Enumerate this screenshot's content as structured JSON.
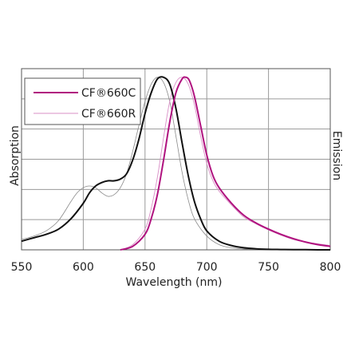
{
  "chart_data": {
    "type": "line",
    "xlabel": "Wavelength (nm)",
    "ylabel_left": "Absorption",
    "ylabel_right": "Emission",
    "xlim": [
      550,
      800
    ],
    "ylim": [
      0,
      1.05
    ],
    "xticks": [
      "550",
      "600",
      "650",
      "700",
      "750",
      "800"
    ],
    "grid": true,
    "legend_position": "top-left",
    "colors": {
      "magenta": "#b0127f",
      "black": "#111111",
      "pink_light": "#d98fc6",
      "gray": "#8a8a8a"
    },
    "legend": [
      {
        "label": "CF®660C",
        "color": "#b0127f",
        "style": "solid"
      },
      {
        "label": "CF®660R",
        "color": "#d98fc6",
        "style": "thin"
      }
    ],
    "series": [
      {
        "kind": "660C absorption",
        "color": "#111111",
        "width": 2.0,
        "x": [
          550,
          560,
          570,
          580,
          590,
          600,
          605,
          610,
          615,
          620,
          625,
          630,
          635,
          640,
          645,
          650,
          655,
          660,
          665,
          670,
          675,
          680,
          685,
          690,
          695,
          700,
          710,
          720,
          730,
          740,
          750,
          760,
          770,
          780,
          790,
          800
        ],
        "y": [
          0.05,
          0.07,
          0.09,
          0.12,
          0.18,
          0.27,
          0.33,
          0.37,
          0.39,
          0.4,
          0.4,
          0.41,
          0.44,
          0.52,
          0.64,
          0.79,
          0.91,
          0.99,
          1.0,
          0.96,
          0.82,
          0.62,
          0.43,
          0.28,
          0.18,
          0.11,
          0.05,
          0.025,
          0.012,
          0.006,
          0.003,
          0.002,
          0.001,
          0.001,
          0.0,
          0.0
        ]
      },
      {
        "kind": "660R absorption",
        "color": "#8a8a8a",
        "width": 0.8,
        "x": [
          550,
          560,
          570,
          580,
          590,
          595,
          600,
          605,
          610,
          615,
          620,
          625,
          630,
          635,
          640,
          645,
          650,
          655,
          660,
          665,
          670,
          675,
          680,
          685,
          690,
          700,
          710,
          720,
          730,
          750,
          800
        ],
        "y": [
          0.06,
          0.08,
          0.11,
          0.17,
          0.28,
          0.33,
          0.36,
          0.37,
          0.36,
          0.33,
          0.31,
          0.32,
          0.36,
          0.44,
          0.57,
          0.72,
          0.86,
          0.96,
          1.0,
          0.97,
          0.86,
          0.66,
          0.45,
          0.29,
          0.18,
          0.08,
          0.03,
          0.012,
          0.005,
          0.001,
          0.0
        ]
      },
      {
        "kind": "660C emission",
        "color": "#b0127f",
        "width": 2.0,
        "x": [
          630,
          640,
          650,
          655,
          660,
          665,
          670,
          675,
          680,
          683,
          686,
          690,
          695,
          700,
          705,
          710,
          720,
          730,
          740,
          750,
          760,
          770,
          780,
          790,
          800
        ],
        "y": [
          0.0,
          0.02,
          0.09,
          0.18,
          0.32,
          0.52,
          0.74,
          0.91,
          0.99,
          1.0,
          0.98,
          0.89,
          0.72,
          0.55,
          0.43,
          0.36,
          0.27,
          0.2,
          0.155,
          0.12,
          0.09,
          0.065,
          0.045,
          0.03,
          0.02
        ]
      },
      {
        "kind": "660R emission",
        "color": "#d98fc6",
        "width": 0.9,
        "x": [
          630,
          640,
          650,
          655,
          660,
          665,
          670,
          675,
          680,
          685,
          690,
          695,
          700,
          705,
          710,
          720,
          730,
          740,
          750,
          760,
          770,
          780,
          790,
          800
        ],
        "y": [
          0.0,
          0.03,
          0.12,
          0.24,
          0.42,
          0.65,
          0.86,
          0.97,
          1.0,
          0.96,
          0.84,
          0.66,
          0.5,
          0.4,
          0.34,
          0.26,
          0.19,
          0.15,
          0.115,
          0.085,
          0.06,
          0.045,
          0.035,
          0.025
        ]
      }
    ]
  }
}
